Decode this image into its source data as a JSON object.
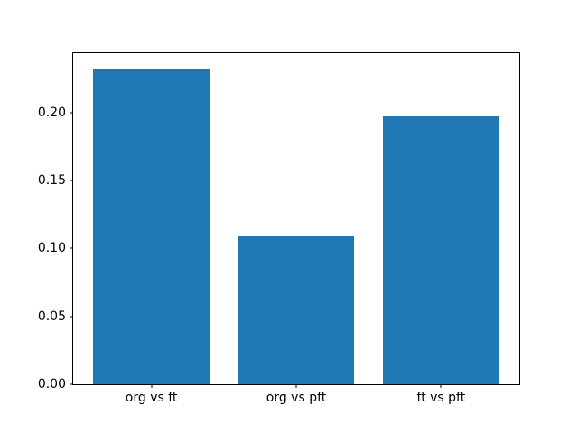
{
  "figure": {
    "background": "#ffffff",
    "title": ""
  },
  "chart_data": {
    "type": "bar",
    "title": "",
    "xlabel": "",
    "ylabel": "",
    "categories": [
      "org vs ft",
      "org vs pft",
      "ft vs pft"
    ],
    "values": [
      0.232,
      0.109,
      0.197
    ],
    "x_positions": [
      0,
      1,
      2
    ],
    "bar_width": 0.8,
    "bar_color": "#1f77b4",
    "axis_color": "#000000",
    "text_color": "#000000",
    "background_color": "#ffffff",
    "xlim": [
      -0.54,
      2.54
    ],
    "ylim": [
      0,
      0.2436
    ],
    "yticks": {
      "values": [
        0,
        0.05,
        0.1,
        0.15,
        0.2
      ],
      "labels": [
        "0.00",
        "0.05",
        "0.10",
        "0.15",
        "0.20"
      ]
    },
    "grid": false,
    "legend": null
  }
}
